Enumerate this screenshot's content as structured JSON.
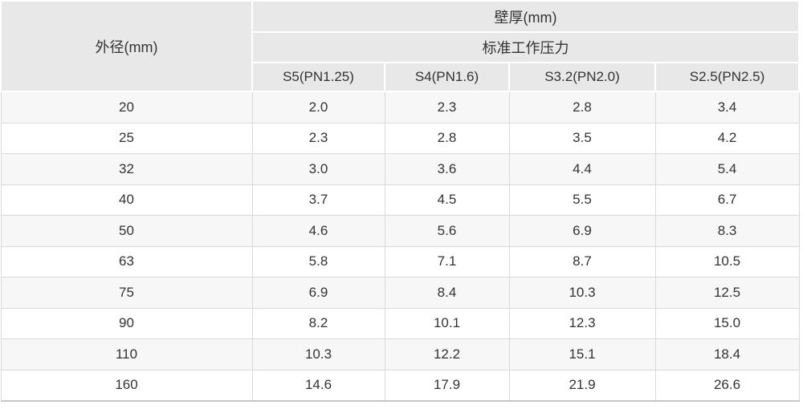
{
  "table": {
    "corner_header": "外径(mm)",
    "group_header": "壁厚(mm)",
    "sub_header": "标准工作压力",
    "pressure_columns": [
      "S5(PN1.25)",
      "S4(PN1.6)",
      "S3.2(PN2.0)",
      "S2.5(PN2.5)"
    ],
    "rows": [
      {
        "outer_diameter": "20",
        "values": [
          "2.0",
          "2.3",
          "2.8",
          "3.4"
        ]
      },
      {
        "outer_diameter": "25",
        "values": [
          "2.3",
          "2.8",
          "3.5",
          "4.2"
        ]
      },
      {
        "outer_diameter": "32",
        "values": [
          "3.0",
          "3.6",
          "4.4",
          "5.4"
        ]
      },
      {
        "outer_diameter": "40",
        "values": [
          "3.7",
          "4.5",
          "5.5",
          "6.7"
        ]
      },
      {
        "outer_diameter": "50",
        "values": [
          "4.6",
          "5.6",
          "6.9",
          "8.3"
        ]
      },
      {
        "outer_diameter": "63",
        "values": [
          "5.8",
          "7.1",
          "8.7",
          "10.5"
        ]
      },
      {
        "outer_diameter": "75",
        "values": [
          "6.9",
          "8.4",
          "10.3",
          "12.5"
        ]
      },
      {
        "outer_diameter": "90",
        "values": [
          "8.2",
          "10.1",
          "12.3",
          "15.0"
        ]
      },
      {
        "outer_diameter": "110",
        "values": [
          "10.3",
          "12.2",
          "15.1",
          "18.4"
        ]
      },
      {
        "outer_diameter": "160",
        "values": [
          "14.6",
          "17.9",
          "21.9",
          "26.6"
        ]
      }
    ],
    "colors": {
      "header_bg": "#e8e8e8",
      "header_separator": "#ffffff",
      "row_alt_bg": "#f7f7f7",
      "row_bg": "#ffffff",
      "grid_border": "#d9d9d9",
      "bottom_border": "#c6c6c6",
      "text": "#333333"
    }
  },
  "chart_data": {
    "type": "table",
    "title": "壁厚(mm) 标准工作压力",
    "row_header": "外径(mm)",
    "column_group": "壁厚(mm)",
    "column_subgroup": "标准工作压力",
    "columns": [
      "外径(mm)",
      "S5(PN1.25)",
      "S4(PN1.6)",
      "S3.2(PN2.0)",
      "S2.5(PN2.5)"
    ],
    "rows": [
      [
        20,
        2.0,
        2.3,
        2.8,
        3.4
      ],
      [
        25,
        2.3,
        2.8,
        3.5,
        4.2
      ],
      [
        32,
        3.0,
        3.6,
        4.4,
        5.4
      ],
      [
        40,
        3.7,
        4.5,
        5.5,
        6.7
      ],
      [
        50,
        4.6,
        5.6,
        6.9,
        8.3
      ],
      [
        63,
        5.8,
        7.1,
        8.7,
        10.5
      ],
      [
        75,
        6.9,
        8.4,
        10.3,
        12.5
      ],
      [
        90,
        8.2,
        10.1,
        12.3,
        15.0
      ],
      [
        110,
        10.3,
        12.2,
        15.1,
        18.4
      ],
      [
        160,
        14.6,
        17.9,
        21.9,
        26.6
      ]
    ]
  }
}
